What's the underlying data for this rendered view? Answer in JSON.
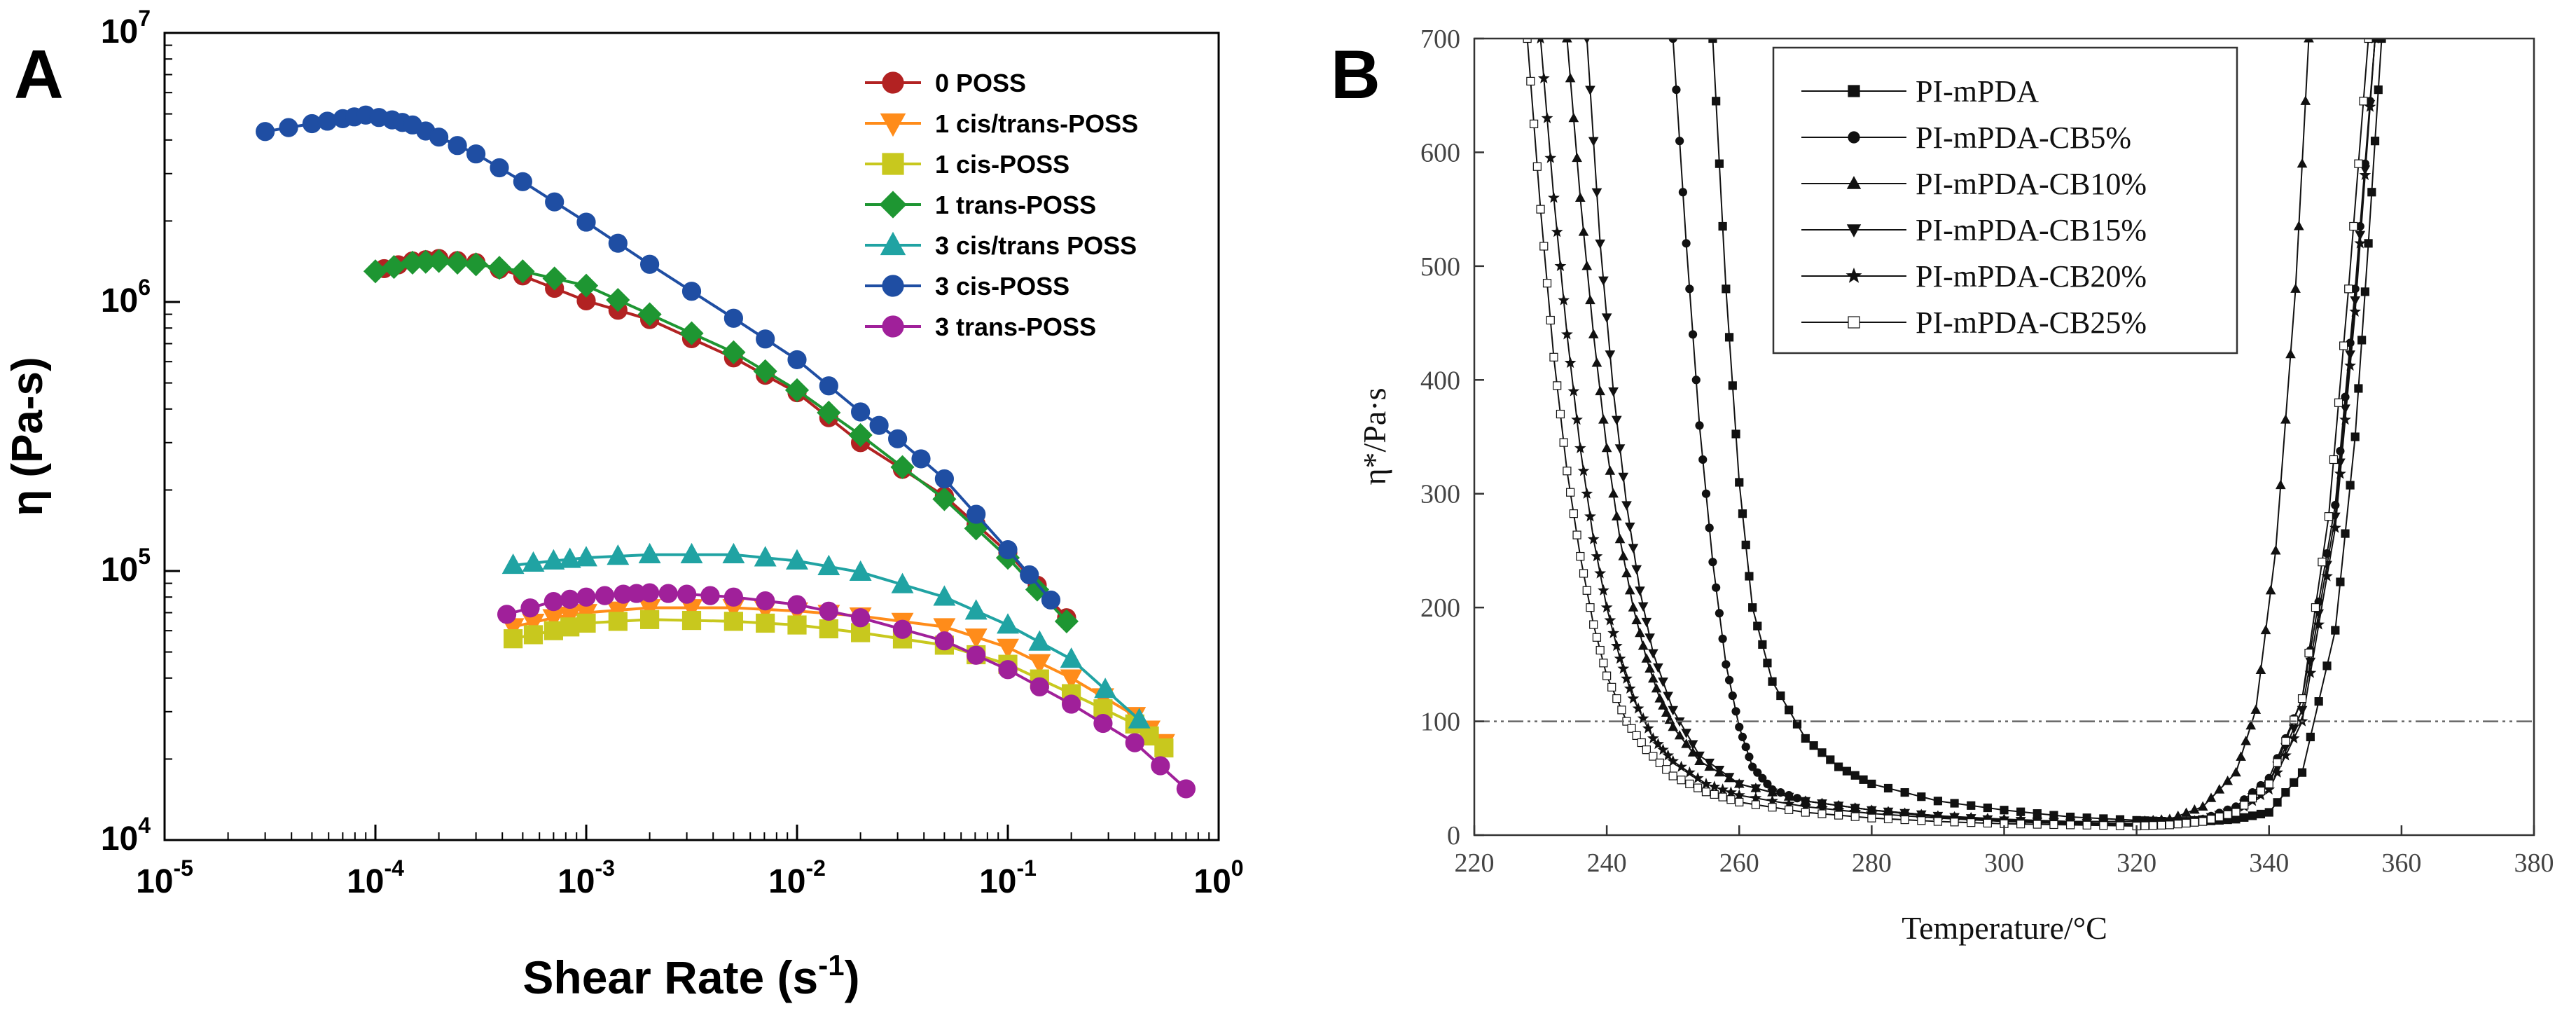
{
  "figure": {
    "colors": {
      "axis": "#000000",
      "paper": "#ffffff",
      "panel_b_ink": "#111111",
      "reference_line": "#666666"
    }
  },
  "chart_data": [
    {
      "panel": "A",
      "type": "line",
      "title": "",
      "xlabel_main": "Shear Rate (s",
      "xlabel_sup": "-1",
      "xlabel_tail": ")",
      "ylabel": "η (Pa-s)",
      "xscale": "log",
      "yscale": "log",
      "xlim": [
        1e-05,
        1
      ],
      "ylim": [
        10000,
        10000000
      ],
      "grid": false,
      "legend_position": "top-right",
      "x_ticks": [
        {
          "value": 1e-05,
          "base": "10",
          "exp": "-5"
        },
        {
          "value": 0.0001,
          "base": "10",
          "exp": "-4"
        },
        {
          "value": 0.001,
          "base": "10",
          "exp": "-3"
        },
        {
          "value": 0.01,
          "base": "10",
          "exp": "-2"
        },
        {
          "value": 0.1,
          "base": "10",
          "exp": "-1"
        },
        {
          "value": 1,
          "base": "10",
          "exp": "0"
        }
      ],
      "y_ticks": [
        {
          "value": 10000,
          "base": "10",
          "exp": "4"
        },
        {
          "value": 100000,
          "base": "10",
          "exp": "5"
        },
        {
          "value": 1000000,
          "base": "10",
          "exp": "6"
        },
        {
          "value": 10000000,
          "base": "10",
          "exp": "7"
        }
      ],
      "series": [
        {
          "name": "0 POSS",
          "color": "#b22222",
          "marker": "circle",
          "x": [
            0.00011,
            0.00015,
            0.0002,
            0.0003,
            0.0005,
            0.001,
            0.002,
            0.005,
            0.01,
            0.02,
            0.05,
            0.1,
            0.19
          ],
          "y": [
            1330000,
            1420000,
            1450000,
            1400000,
            1250000,
            1010000,
            860000,
            620000,
            460000,
            300000,
            190000,
            117000,
            67000
          ]
        },
        {
          "name": "1 cis/trans-POSS",
          "color": "#ff8c1a",
          "marker": "triangle-down",
          "x": [
            0.00045,
            0.0007,
            0.001,
            0.002,
            0.005,
            0.01,
            0.02,
            0.05,
            0.1,
            0.2,
            0.4,
            0.55
          ],
          "y": [
            62000,
            67000,
            70000,
            73000,
            73000,
            71000,
            68000,
            62000,
            52000,
            40000,
            29000,
            23000
          ]
        },
        {
          "name": "1 cis-POSS",
          "color": "#c8c81e",
          "marker": "square",
          "x": [
            0.00045,
            0.0007,
            0.001,
            0.002,
            0.005,
            0.01,
            0.02,
            0.05,
            0.1,
            0.2,
            0.4,
            0.55
          ],
          "y": [
            56000,
            60000,
            64000,
            66000,
            65000,
            63000,
            59000,
            53000,
            45000,
            35000,
            27000,
            22000
          ]
        },
        {
          "name": "1 trans-POSS",
          "color": "#1e9632",
          "marker": "diamond",
          "x": [
            0.0001,
            0.00015,
            0.0002,
            0.0003,
            0.0005,
            0.001,
            0.002,
            0.005,
            0.01,
            0.02,
            0.05,
            0.1,
            0.19
          ],
          "y": [
            1300000,
            1400000,
            1420000,
            1380000,
            1300000,
            1150000,
            900000,
            650000,
            470000,
            320000,
            185000,
            112000,
            65000
          ]
        },
        {
          "name": "3 cis/trans POSS",
          "color": "#20a3a3",
          "marker": "triangle-up",
          "x": [
            0.00045,
            0.0007,
            0.001,
            0.002,
            0.005,
            0.01,
            0.02,
            0.05,
            0.1,
            0.2,
            0.42
          ],
          "y": [
            105000,
            109000,
            112000,
            115000,
            115000,
            109000,
            99000,
            80000,
            63000,
            47000,
            28000
          ]
        },
        {
          "name": "3 cis-POSS",
          "color": "#1f4ea3",
          "marker": "circle",
          "x": [
            3e-05,
            5e-05,
            7e-05,
            9e-05,
            0.00012,
            0.00015,
            0.0002,
            0.0003,
            0.0005,
            0.001,
            0.002,
            0.005,
            0.01,
            0.02,
            0.03,
            0.05,
            0.1,
            0.16
          ],
          "y": [
            4300000,
            4600000,
            4800000,
            4950000,
            4750000,
            4550000,
            4100000,
            3550000,
            2800000,
            1980000,
            1380000,
            870000,
            610000,
            390000,
            310000,
            220000,
            120000,
            78000
          ]
        },
        {
          "name": "3 trans-POSS",
          "color": "#a0209a",
          "marker": "circle",
          "x": [
            0.00042,
            0.0007,
            0.001,
            0.0015,
            0.002,
            0.003,
            0.005,
            0.01,
            0.02,
            0.05,
            0.1,
            0.2,
            0.4,
            0.7
          ],
          "y": [
            69000,
            77000,
            80000,
            82000,
            83000,
            82000,
            80000,
            75000,
            67000,
            55000,
            43000,
            32000,
            23000,
            15500
          ]
        }
      ]
    },
    {
      "panel": "B",
      "type": "line",
      "title": "",
      "xlabel": "Temperature/°C",
      "ylabel": "η*/Pa·s",
      "xlim": [
        220,
        380
      ],
      "ylim": [
        0,
        700
      ],
      "x_ticks": [
        220,
        240,
        260,
        280,
        300,
        320,
        340,
        360,
        380
      ],
      "y_ticks": [
        0,
        100,
        200,
        300,
        400,
        500,
        600,
        700
      ],
      "grid": false,
      "legend_position": "top-left",
      "reference_line_y": 100,
      "series": [
        {
          "name": "PI-mPDA",
          "marker": "square",
          "x": [
            256,
            258,
            260,
            262,
            265,
            270,
            275,
            280,
            290,
            300,
            310,
            320,
            325,
            330,
            335,
            340,
            345,
            350,
            353,
            355,
            357
          ],
          "y": [
            700,
            480,
            310,
            200,
            135,
            85,
            60,
            45,
            30,
            22,
            16,
            13,
            12,
            12,
            14,
            20,
            55,
            180,
            350,
            520,
            700
          ]
        },
        {
          "name": "PI-mPDA-CB5%",
          "marker": "circle",
          "x": [
            250,
            252,
            254,
            256,
            258,
            260,
            262,
            265,
            270,
            280,
            290,
            300,
            310,
            320,
            325,
            330,
            335,
            340,
            345,
            350,
            353,
            356
          ],
          "y": [
            700,
            520,
            360,
            240,
            150,
            95,
            60,
            40,
            30,
            22,
            16,
            12,
            10,
            9,
            10,
            14,
            25,
            50,
            120,
            290,
            480,
            700
          ]
        },
        {
          "name": "PI-mPDA-CB10%",
          "marker": "triangle-up",
          "x": [
            234,
            236,
            238,
            240,
            242,
            244,
            246,
            248,
            250,
            254,
            260,
            270,
            280,
            290,
            300,
            310,
            320,
            325,
            330,
            335,
            338,
            341,
            344,
            346
          ],
          "y": [
            700,
            560,
            440,
            340,
            260,
            200,
            155,
            120,
            95,
            65,
            45,
            30,
            22,
            17,
            14,
            12,
            12,
            14,
            25,
            55,
            110,
            250,
            480,
            700
          ]
        },
        {
          "name": "PI-mPDA-CB15%",
          "marker": "triangle-down",
          "x": [
            237,
            239,
            241,
            243,
            245,
            247,
            250,
            254,
            260,
            270,
            280,
            290,
            300,
            310,
            320,
            325,
            330,
            335,
            340,
            345,
            350,
            353,
            356
          ],
          "y": [
            700,
            520,
            390,
            290,
            215,
            160,
            110,
            70,
            45,
            30,
            22,
            17,
            13,
            11,
            10,
            11,
            14,
            22,
            45,
            110,
            280,
            470,
            700
          ]
        },
        {
          "name": "PI-mPDA-CB20%",
          "marker": "star",
          "x": [
            230,
            232,
            234,
            236,
            238,
            240,
            242,
            244,
            247,
            250,
            255,
            260,
            270,
            280,
            290,
            300,
            310,
            320,
            325,
            330,
            335,
            340,
            345,
            350,
            353,
            356
          ],
          "y": [
            700,
            560,
            440,
            340,
            260,
            200,
            155,
            120,
            85,
            65,
            45,
            35,
            25,
            19,
            15,
            12,
            10,
            9,
            10,
            13,
            20,
            40,
            100,
            270,
            460,
            700
          ]
        },
        {
          "name": "PI-mPDA-CB25%",
          "marker": "square-open",
          "x": [
            228,
            230,
            232,
            234,
            236,
            238,
            240,
            243,
            246,
            250,
            255,
            260,
            270,
            280,
            290,
            300,
            310,
            320,
            325,
            330,
            335,
            340,
            345,
            349,
            352,
            355
          ],
          "y": [
            700,
            550,
            420,
            320,
            245,
            185,
            140,
            100,
            75,
            52,
            38,
            29,
            20,
            15,
            12,
            10,
            9,
            8,
            9,
            12,
            20,
            45,
            120,
            280,
            480,
            700
          ]
        }
      ]
    }
  ],
  "panel_labels": [
    "A",
    "B"
  ]
}
